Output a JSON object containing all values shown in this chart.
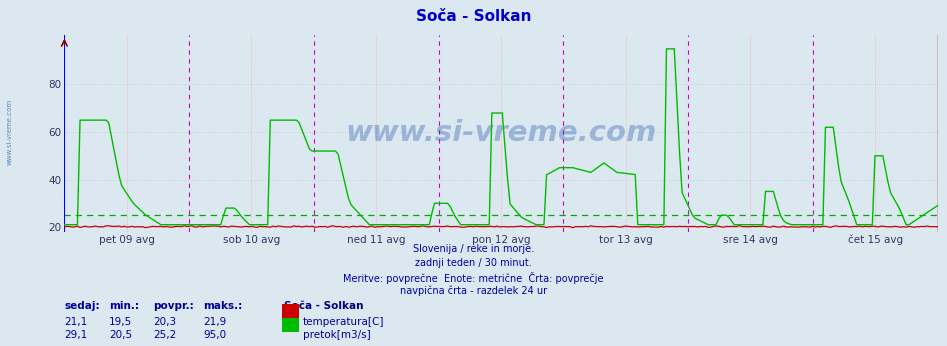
{
  "title": "Soča - Solkan",
  "title_color": "#0000cc",
  "bg_color": "#dce8f0",
  "ylim": [
    18,
    101
  ],
  "yticks": [
    20,
    40,
    60,
    80
  ],
  "xlabel_days": [
    "pet 09 avg",
    "sob 10 avg",
    "ned 11 avg",
    "pon 12 avg",
    "tor 13 avg",
    "sre 14 avg",
    "čet 15 avg"
  ],
  "n_points": 336,
  "pretok_avg": 25.2,
  "temp_color": "#cc0000",
  "pretok_color": "#00bb00",
  "avg_line_color": "#00aa00",
  "vline_midnight_color": "#cc00cc",
  "vline_noon_color": "#ffaaaa",
  "hgrid_color": "#bbccdd",
  "left_axis_color": "#0000ff",
  "right_axis_color": "#cc0000",
  "watermark": "www.si-vreme.com",
  "watermark_color": "#2255aa",
  "watermark_alpha": 0.35,
  "subtitle_lines": [
    "Slovenija / reke in morje.",
    "zadnji teden / 30 minut.",
    "Meritve: povprečne  Enote: metrične  Črta: povprečje",
    "navpična črta - razdelek 24 ur"
  ],
  "subtitle_color": "#0000aa",
  "legend_title": "Soča - Solkan",
  "legend_title_color": "#000080",
  "legend_entries": [
    "temperatura[C]",
    "pretok[m3/s]"
  ],
  "legend_colors": [
    "#cc0000",
    "#00bb00"
  ],
  "table_headers": [
    "sedaj:",
    "min.:",
    "povpr.:",
    "maks.:"
  ],
  "table_color": "#000099",
  "table_row1": [
    "21,1",
    "19,5",
    "20,3",
    "21,9"
  ],
  "table_row2": [
    "29,1",
    "20,5",
    "25,2",
    "95,0"
  ],
  "sidebar_text": "www.si-vreme.com",
  "sidebar_color": "#5588bb"
}
